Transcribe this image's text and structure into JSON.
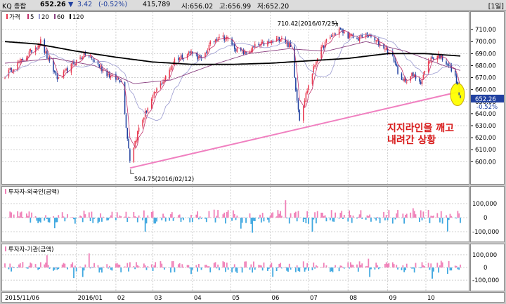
{
  "header": {
    "symbol": "KQ 종합",
    "price": "652.26",
    "change_arrow": "▼",
    "change": "3.42",
    "change_pct": "(-0.52%)",
    "volume": "415,789",
    "open_label": "시:656.02",
    "high_label": "고:656.99",
    "low_label": "저:652.20",
    "period": "[1일]"
  },
  "colors": {
    "up": "#e8384f",
    "down": "#1f3f9f",
    "ma5": "#c0306a",
    "ma20": "#9a9ad0",
    "ma60": "#8a4080",
    "ma120": "#000000",
    "trendline": "#f080c0",
    "foreign_pos": "#f080b8",
    "foreign_neg": "#40a8e0",
    "inst_pos": "#f080b8",
    "inst_neg": "#40a8e0",
    "highlight": "#ffff00",
    "annotation": "#d81a1a"
  },
  "chart_data": [
    {
      "type": "candlestick",
      "legend": [
        "가격",
        "5",
        "20",
        "60",
        "120"
      ],
      "ylim": [
        585,
        720
      ],
      "y_ticks": [
        "710.00",
        "700.00",
        "690.00",
        "680.00",
        "670.00",
        "660.00",
        "650.00",
        "640.00",
        "630.00",
        "620.00",
        "610.00",
        "600.00"
      ],
      "current_price_tag": "652.26",
      "current_change_tag": "-0.52%",
      "x_labels": [
        "2015/11/06",
        "2016/01",
        "02",
        "03",
        "04",
        "05",
        "06",
        "07",
        "08",
        "09",
        "10"
      ],
      "annotations": [
        {
          "text": "710.42(2016/07/25)",
          "date": "2016/07/25",
          "value": 710.42
        },
        {
          "text": "594.75(2016/02/12)",
          "date": "2016/02/12",
          "value": 594.75
        },
        {
          "text": "지지라인을 깨고",
          "line": 1
        },
        {
          "text": "내려간 상황",
          "line": 2
        }
      ],
      "trendline": {
        "start": [
          "2016/02/12",
          594.75
        ],
        "end": [
          "2016/10/28",
          659
        ]
      },
      "close_path": [
        [
          "2015/11/06",
          672
        ],
        [
          "2015/11/20",
          685
        ],
        [
          "2015/12/04",
          700
        ],
        [
          "2015/12/11",
          682
        ],
        [
          "2015/12/18",
          668
        ],
        [
          "2015/12/30",
          682
        ],
        [
          "2016/01/08",
          690
        ],
        [
          "2016/01/15",
          684
        ],
        [
          "2016/01/22",
          676
        ],
        [
          "2016/01/29",
          670
        ],
        [
          "2016/02/05",
          668
        ],
        [
          "2016/02/12",
          602
        ],
        [
          "2016/02/19",
          628
        ],
        [
          "2016/02/26",
          645
        ],
        [
          "2016/03/04",
          660
        ],
        [
          "2016/03/11",
          670
        ],
        [
          "2016/03/18",
          685
        ],
        [
          "2016/03/25",
          688
        ],
        [
          "2016/04/01",
          692
        ],
        [
          "2016/04/08",
          684
        ],
        [
          "2016/04/15",
          698
        ],
        [
          "2016/04/22",
          705
        ],
        [
          "2016/04/29",
          702
        ],
        [
          "2016/05/06",
          693
        ],
        [
          "2016/05/13",
          690
        ],
        [
          "2016/05/20",
          696
        ],
        [
          "2016/05/27",
          698
        ],
        [
          "2016/06/03",
          700
        ],
        [
          "2016/06/10",
          704
        ],
        [
          "2016/06/17",
          695
        ],
        [
          "2016/06/24",
          636
        ],
        [
          "2016/06/30",
          660
        ],
        [
          "2016/07/08",
          688
        ],
        [
          "2016/07/15",
          700
        ],
        [
          "2016/07/25",
          710.4
        ],
        [
          "2016/08/01",
          705
        ],
        [
          "2016/08/08",
          702
        ],
        [
          "2016/08/16",
          706
        ],
        [
          "2016/08/23",
          700
        ],
        [
          "2016/08/30",
          695
        ],
        [
          "2016/09/06",
          685
        ],
        [
          "2016/09/12",
          666
        ],
        [
          "2016/09/20",
          672
        ],
        [
          "2016/09/27",
          667
        ],
        [
          "2016/10/04",
          685
        ],
        [
          "2016/10/11",
          689
        ],
        [
          "2016/10/18",
          682
        ],
        [
          "2016/10/25",
          668
        ],
        [
          "2016/10/28",
          652.26
        ]
      ],
      "ma120": [
        [
          "2015/11/06",
          700
        ],
        [
          "2015/12/01",
          698
        ],
        [
          "2016/01/01",
          692
        ],
        [
          "2016/02/01",
          687
        ],
        [
          "2016/03/01",
          683
        ],
        [
          "2016/04/01",
          681
        ],
        [
          "2016/05/01",
          681
        ],
        [
          "2016/06/01",
          682
        ],
        [
          "2016/07/01",
          684
        ],
        [
          "2016/08/01",
          686
        ],
        [
          "2016/09/01",
          690
        ],
        [
          "2016/10/01",
          690
        ],
        [
          "2016/10/28",
          688
        ]
      ],
      "ma60": [
        [
          "2015/11/06",
          682
        ],
        [
          "2015/12/15",
          686
        ],
        [
          "2016/01/15",
          680
        ],
        [
          "2016/02/15",
          665
        ],
        [
          "2016/03/15",
          668
        ],
        [
          "2016/04/15",
          680
        ],
        [
          "2016/05/15",
          690
        ],
        [
          "2016/06/15",
          694
        ],
        [
          "2016/07/15",
          692
        ],
        [
          "2016/08/15",
          700
        ],
        [
          "2016/09/15",
          692
        ],
        [
          "2016/10/15",
          680
        ],
        [
          "2016/10/28",
          676
        ]
      ]
    },
    {
      "type": "bar",
      "legend": "투자자-외국인(금액)",
      "y_ticks": [
        "100,000",
        "0",
        "-100,000"
      ],
      "ylim": [
        -150000,
        200000
      ],
      "values_note": "daily net purchases",
      "series_seed": 7
    },
    {
      "type": "bar",
      "legend": "투자자-기관(금액)",
      "y_ticks": [
        "100,000",
        "0",
        "-100,000"
      ],
      "ylim": [
        -160000,
        160000
      ],
      "series_seed": 13
    }
  ]
}
